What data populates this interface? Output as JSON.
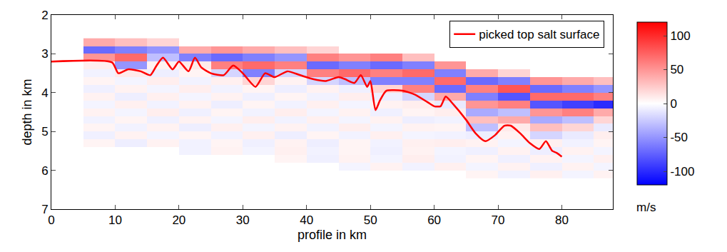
{
  "chart_data": {
    "type": "heatmap",
    "xlabel": "profile in km",
    "ylabel": "depth in km",
    "xlim": [
      0,
      88
    ],
    "xticks": [
      0,
      10,
      20,
      30,
      40,
      50,
      60,
      70,
      80
    ],
    "ylim": [
      7,
      2
    ],
    "yticks": [
      2,
      3,
      4,
      5,
      6,
      7
    ],
    "x": [
      2.5,
      7.5,
      12.5,
      17.5,
      22.5,
      27.5,
      32.5,
      37.5,
      42.5,
      47.5,
      52.5,
      57.5,
      62.5,
      67.5,
      72.5,
      77.5,
      82.5,
      87.5
    ],
    "y": [
      2.7,
      2.9,
      3.1,
      3.3,
      3.5,
      3.7,
      3.9,
      4.1,
      4.3,
      4.5,
      4.7,
      4.9,
      5.1,
      5.3,
      5.5,
      5.7,
      5.9,
      6.1
    ],
    "z": [
      [
        null,
        40,
        30,
        20,
        null,
        null,
        null,
        null,
        null,
        null,
        null,
        null,
        null,
        null,
        null,
        null,
        null,
        null
      ],
      [
        null,
        -70,
        -60,
        -50,
        40,
        50,
        40,
        30,
        20,
        null,
        null,
        null,
        null,
        null,
        null,
        null,
        null,
        null
      ],
      [
        null,
        50,
        70,
        -30,
        -60,
        -70,
        -60,
        -50,
        60,
        50,
        60,
        30,
        null,
        null,
        null,
        null,
        null,
        null
      ],
      [
        null,
        8,
        -50,
        6,
        10,
        60,
        70,
        60,
        -70,
        -60,
        -70,
        -60,
        50,
        null,
        null,
        null,
        null,
        null
      ],
      [
        null,
        -6,
        10,
        -8,
        5,
        -20,
        -60,
        -20,
        60,
        70,
        60,
        70,
        -60,
        40,
        20,
        null,
        null,
        null
      ],
      [
        null,
        5,
        -5,
        8,
        -6,
        7,
        20,
        6,
        -20,
        -30,
        -60,
        -60,
        70,
        -70,
        -60,
        50,
        40,
        30
      ],
      [
        null,
        -7,
        6,
        -5,
        8,
        -6,
        5,
        -8,
        6,
        -7,
        20,
        60,
        -70,
        60,
        80,
        -70,
        -60,
        -50
      ],
      [
        null,
        6,
        -8,
        7,
        -5,
        6,
        -7,
        5,
        -6,
        8,
        -8,
        -20,
        40,
        -60,
        -80,
        70,
        70,
        60
      ],
      [
        null,
        -5,
        7,
        -6,
        6,
        -8,
        5,
        -6,
        7,
        -5,
        6,
        8,
        -10,
        50,
        60,
        -80,
        -90,
        -100
      ],
      [
        null,
        6,
        -5,
        8,
        -7,
        5,
        -6,
        8,
        -5,
        6,
        -7,
        5,
        8,
        -40,
        -30,
        50,
        60,
        40
      ],
      [
        null,
        -6,
        5,
        -7,
        6,
        -5,
        8,
        -6,
        7,
        -5,
        6,
        -8,
        -6,
        30,
        40,
        -40,
        -30,
        20
      ],
      [
        null,
        5,
        -6,
        6,
        -8,
        7,
        -5,
        6,
        -6,
        8,
        -5,
        6,
        5,
        -30,
        10,
        30,
        20,
        -10
      ],
      [
        null,
        -7,
        6,
        -5,
        5,
        -6,
        7,
        -8,
        5,
        -6,
        7,
        -5,
        -6,
        -8,
        6,
        -20,
        -10,
        8
      ],
      [
        null,
        5,
        -8,
        6,
        -6,
        5,
        -7,
        6,
        -8,
        5,
        -6,
        7,
        8,
        6,
        -5,
        7,
        -6,
        5
      ],
      [
        null,
        null,
        null,
        null,
        -6,
        6,
        -5,
        7,
        -6,
        5,
        -7,
        6,
        -5,
        -7,
        6,
        -8,
        6,
        -5
      ],
      [
        null,
        null,
        null,
        null,
        null,
        null,
        null,
        5,
        -7,
        6,
        -5,
        8,
        -6,
        5,
        -7,
        6,
        -5,
        7
      ],
      [
        null,
        null,
        null,
        null,
        null,
        null,
        null,
        null,
        null,
        -5,
        6,
        -6,
        7,
        -5,
        6,
        -7,
        6,
        -5
      ],
      [
        null,
        null,
        null,
        null,
        null,
        null,
        null,
        null,
        null,
        null,
        null,
        null,
        null,
        5,
        -6,
        7,
        -5,
        6
      ]
    ],
    "zlim": [
      -120,
      120
    ],
    "zticks": [
      -100,
      -50,
      0,
      50,
      100
    ],
    "colorbar_title": "m/s",
    "legend": "upper right",
    "series": [
      {
        "name": "picked top salt surface",
        "type": "line",
        "color": "#ff0000",
        "x": [
          0,
          9.5,
          10.5,
          12,
          14,
          15.5,
          16.5,
          17.5,
          19,
          20,
          21.5,
          22.5,
          23.5,
          25,
          27,
          28.5,
          30,
          32,
          33.5,
          35,
          37,
          39,
          41,
          43,
          45,
          46,
          47.5,
          48.5,
          49.5,
          50,
          50.8,
          51.5,
          52.5,
          55,
          57,
          59,
          60,
          61,
          61.8,
          63,
          65,
          66.5,
          68,
          69.5,
          71,
          72,
          73.5,
          75,
          76.5,
          77.5,
          78.5,
          79.2,
          80
        ],
        "values": [
          3.2,
          3.22,
          3.5,
          3.4,
          3.45,
          3.55,
          3.3,
          3.1,
          3.4,
          3.2,
          3.45,
          3.1,
          3.35,
          3.5,
          3.55,
          3.3,
          3.5,
          3.85,
          3.5,
          3.6,
          3.45,
          3.55,
          3.65,
          3.7,
          3.6,
          3.65,
          3.75,
          3.55,
          3.85,
          3.7,
          4.45,
          4.2,
          3.95,
          3.95,
          4.05,
          4.25,
          4.35,
          4.35,
          4.1,
          4.3,
          4.7,
          5.05,
          5.25,
          5.1,
          4.85,
          4.85,
          5.05,
          5.3,
          5.45,
          5.25,
          5.5,
          5.55,
          5.65
        ]
      }
    ]
  }
}
